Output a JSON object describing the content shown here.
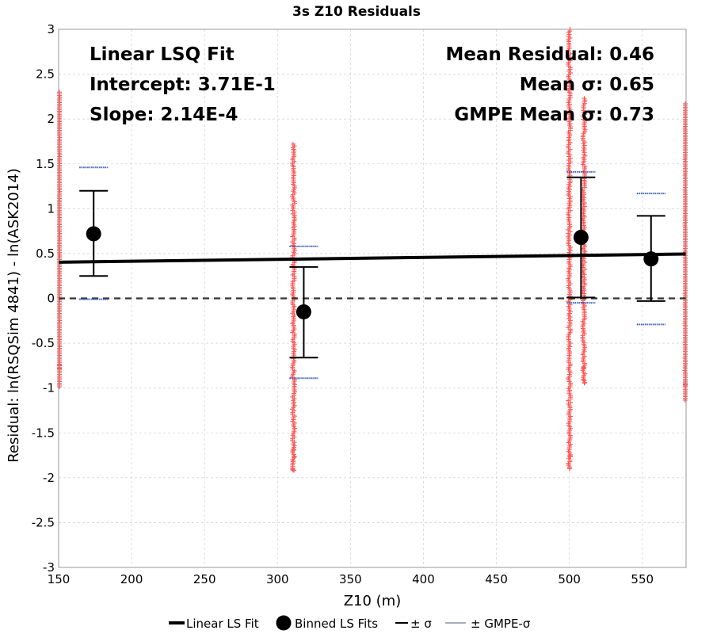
{
  "chart_data": {
    "type": "scatter",
    "title": "3s Z10 Residuals",
    "xlabel": "Z10 (m)",
    "ylabel": "Residual: ln(RSQSim 4841) - ln(ASK2014)",
    "xlim": [
      150,
      580
    ],
    "ylim": [
      -3,
      3
    ],
    "xticks": [
      150,
      200,
      250,
      300,
      350,
      400,
      450,
      500,
      550
    ],
    "yticks": [
      -3,
      -2.5,
      -2,
      -1.5,
      -1,
      -0.5,
      0,
      0.5,
      1,
      1.5,
      2,
      2.5,
      3
    ],
    "grid": true,
    "colors": {
      "scatter": "#ff5555",
      "fit": "#000000",
      "binned": "#000000",
      "sigma": "#000000",
      "gmpe_sigma": "#3355aa",
      "zero_line": "#333333"
    },
    "annotations_left": [
      "Linear LSQ Fit",
      "Intercept: 3.71E-1",
      "Slope: 2.14E-4"
    ],
    "annotations_right": [
      "Mean Residual: 0.46",
      "Mean σ: 0.65",
      "GMPE Mean σ: 0.73"
    ],
    "linear_fit": {
      "intercept": 0.371,
      "slope": 0.000214
    },
    "scatter_columns": [
      {
        "x": 150,
        "ymin": -1.0,
        "ymax": 2.3
      },
      {
        "x": 311,
        "ymin": -1.92,
        "ymax": 1.72
      },
      {
        "x": 500,
        "ymin": -1.9,
        "ymax": 3.0
      },
      {
        "x": 510,
        "ymin": -0.95,
        "ymax": 2.23
      },
      {
        "x": 580,
        "ymin": -1.15,
        "ymax": 2.17
      }
    ],
    "binned_fits": [
      {
        "x": 174,
        "mean": 0.72,
        "sigma_low": 0.25,
        "sigma_high": 1.2,
        "gmpe_low": -0.01,
        "gmpe_high": 1.46
      },
      {
        "x": 318,
        "mean": -0.15,
        "sigma_low": -0.66,
        "sigma_high": 0.35,
        "gmpe_low": -0.89,
        "gmpe_high": 0.58
      },
      {
        "x": 508,
        "mean": 0.68,
        "sigma_low": 0.01,
        "sigma_high": 1.35,
        "gmpe_low": -0.05,
        "gmpe_high": 1.41
      },
      {
        "x": 556,
        "mean": 0.44,
        "sigma_low": -0.03,
        "sigma_high": 0.92,
        "gmpe_low": -0.29,
        "gmpe_high": 1.17
      }
    ],
    "legend": [
      "Linear LS Fit",
      "Binned LS Fits",
      "± σ",
      "± GMPE-σ"
    ],
    "legend_placement": "bottom"
  }
}
